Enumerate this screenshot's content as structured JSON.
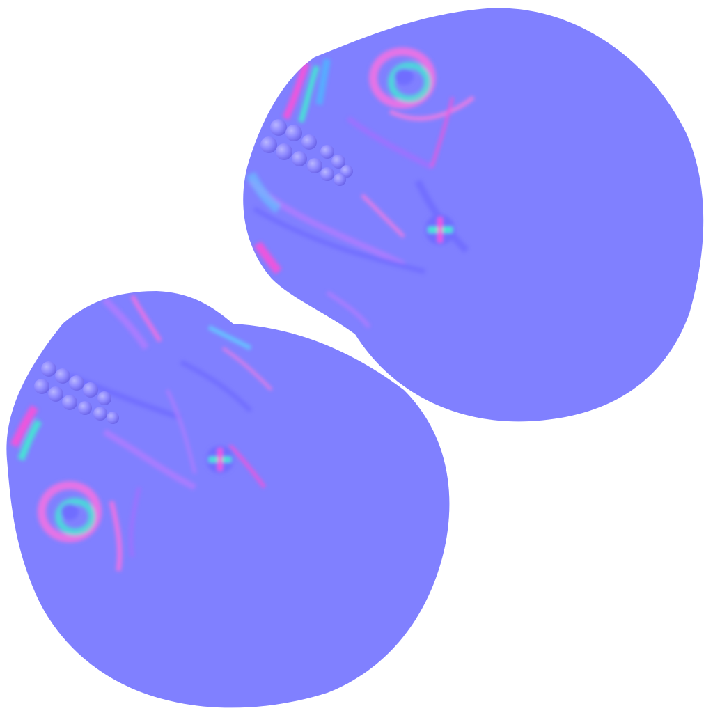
{
  "image": {
    "kind": "normal-map texture atlas",
    "background_color": "#ffffff",
    "base_normal_color": "#8080ff",
    "accent_colors": [
      "#ff4fd8",
      "#3ff0d0",
      "#6f6cff",
      "#b07cff",
      "#4fb4ff"
    ]
  },
  "islands": [
    {
      "id": "upper-right-island",
      "features": [
        "bead-row",
        "ring-bump",
        "crease-lines",
        "pinch-point"
      ]
    },
    {
      "id": "lower-left-island",
      "features": [
        "bead-row",
        "ring-bump",
        "crease-lines",
        "pinch-point"
      ]
    }
  ]
}
